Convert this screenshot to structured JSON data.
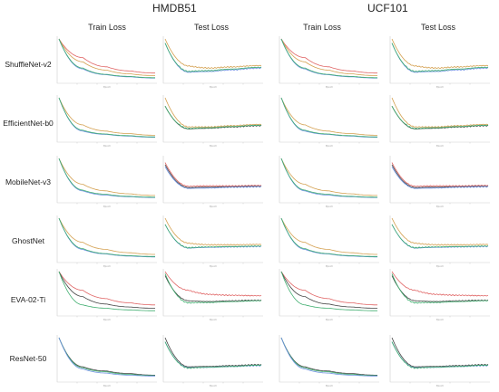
{
  "datasets": [
    "HMDB51",
    "UCF101"
  ],
  "columns": [
    "Train Loss",
    "Test Loss",
    "Train Loss",
    "Test Loss"
  ],
  "models": [
    "ShuffleNet-v2",
    "EfficientNet-b0",
    "MobileNet-v3",
    "GhostNet",
    "EVA-02-Ti",
    "ResNet-50"
  ],
  "chart_data": {
    "type": "line",
    "description_of_grid": "6 models x 4 panels (HMDB51 train/test, UCF101 train/test)",
    "x_label_small": "Epoch",
    "series_colors": {
      "red": "#e06464",
      "orange": "#d4a050",
      "green": "#3fae6f",
      "cyan": "#5fc8d6",
      "blue": "#6a8fe0",
      "gray": "#444444"
    },
    "panels": {
      "ShuffleNet-v2": {
        "train": {
          "red": [
            1.0,
            0.55,
            0.33,
            0.23,
            0.18
          ],
          "orange": [
            1.0,
            0.45,
            0.25,
            0.16,
            0.12
          ],
          "blue": [
            1.0,
            0.28,
            0.14,
            0.09,
            0.06
          ],
          "green": [
            1.0,
            0.3,
            0.15,
            0.1,
            0.07
          ]
        },
        "test": {
          "orange": [
            1.0,
            0.35,
            0.3,
            0.33,
            0.36
          ],
          "blue": [
            0.9,
            0.2,
            0.22,
            0.26,
            0.3
          ],
          "green": [
            0.9,
            0.22,
            0.24,
            0.28,
            0.32
          ]
        }
      },
      "EfficientNet-b0": {
        "train": {
          "orange": [
            1.0,
            0.35,
            0.2,
            0.14,
            0.1
          ],
          "blue": [
            1.0,
            0.2,
            0.12,
            0.08,
            0.05
          ],
          "green": [
            1.0,
            0.22,
            0.13,
            0.09,
            0.06
          ]
        },
        "test": {
          "orange": [
            1.0,
            0.3,
            0.3,
            0.33,
            0.36
          ],
          "gray": [
            0.8,
            0.25,
            0.27,
            0.3,
            0.33
          ],
          "green": [
            0.8,
            0.26,
            0.28,
            0.31,
            0.34
          ]
        }
      },
      "MobileNet-v3": {
        "train": {
          "orange": [
            1.0,
            0.38,
            0.22,
            0.15,
            0.11
          ],
          "blue": [
            1.0,
            0.22,
            0.12,
            0.08,
            0.06
          ],
          "green": [
            1.0,
            0.24,
            0.14,
            0.09,
            0.07
          ]
        },
        "test": {
          "red": [
            0.9,
            0.33,
            0.34,
            0.34,
            0.35
          ],
          "gray": [
            0.85,
            0.3,
            0.31,
            0.32,
            0.33
          ],
          "blue": [
            0.8,
            0.28,
            0.29,
            0.31,
            0.32
          ]
        }
      },
      "GhostNet": {
        "train": {
          "orange": [
            1.0,
            0.42,
            0.25,
            0.17,
            0.13
          ],
          "blue": [
            1.0,
            0.25,
            0.14,
            0.09,
            0.07
          ],
          "green": [
            1.0,
            0.27,
            0.15,
            0.1,
            0.08
          ]
        },
        "test": {
          "orange": [
            1.0,
            0.4,
            0.36,
            0.36,
            0.37
          ],
          "blue": [
            0.85,
            0.28,
            0.3,
            0.31,
            0.32
          ],
          "green": [
            0.85,
            0.29,
            0.31,
            0.32,
            0.33
          ]
        }
      },
      "EVA-02-Ti": {
        "train": {
          "red": [
            1.0,
            0.55,
            0.35,
            0.25,
            0.2
          ],
          "gray": [
            1.0,
            0.4,
            0.22,
            0.15,
            0.12
          ],
          "green": [
            1.0,
            0.2,
            0.12,
            0.08,
            0.06
          ]
        },
        "test": {
          "red": [
            1.0,
            0.55,
            0.45,
            0.43,
            0.42
          ],
          "gray": [
            0.9,
            0.3,
            0.28,
            0.3,
            0.31
          ],
          "green": [
            0.95,
            0.25,
            0.26,
            0.28,
            0.3
          ]
        }
      },
      "ResNet-50": {
        "train": {
          "gray": [
            1.0,
            0.3,
            0.2,
            0.14,
            0.1
          ],
          "green": [
            1.0,
            0.28,
            0.18,
            0.12,
            0.09
          ],
          "blue": [
            1.0,
            0.25,
            0.15,
            0.1,
            0.08
          ]
        },
        "test": {
          "gray": [
            1.0,
            0.3,
            0.31,
            0.33,
            0.35
          ],
          "blue": [
            0.9,
            0.28,
            0.29,
            0.31,
            0.33
          ],
          "green": [
            0.9,
            0.27,
            0.29,
            0.31,
            0.34
          ]
        }
      }
    }
  }
}
